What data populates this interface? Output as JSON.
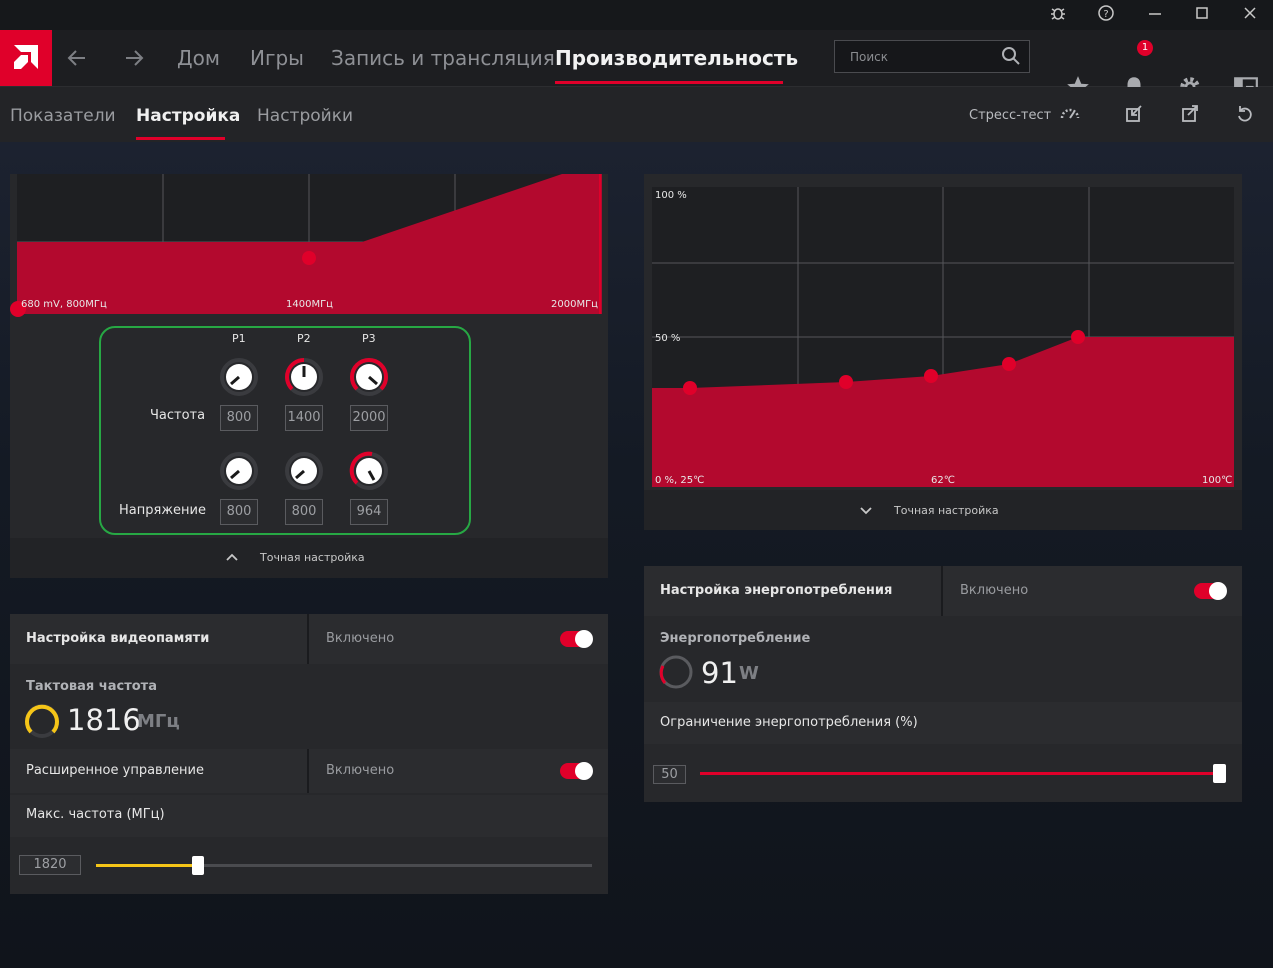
{
  "titlebar": {
    "icons": [
      "bug-icon",
      "help-icon",
      "minimize-icon",
      "maximize-icon",
      "close-icon"
    ]
  },
  "nav": {
    "items": [
      {
        "label": "Дом"
      },
      {
        "label": "Игры"
      },
      {
        "label": "Запись и трансляция"
      },
      {
        "label": "Производительность"
      }
    ],
    "active": "Производительность",
    "search_placeholder": "Поиск",
    "notification_count": "1",
    "accent": "#e0002a"
  },
  "subnav": {
    "items": [
      {
        "label": "Показатели"
      },
      {
        "label": "Настройка"
      },
      {
        "label": "Настройки"
      }
    ],
    "active": "Настройка",
    "stress_test_label": "Стресс-тест"
  },
  "gpu_tuning": {
    "curve_labels": {
      "left": "680 mV, 800МГц",
      "mid": "1400МГц",
      "right": "2000МГц"
    },
    "states": [
      "P1",
      "P2",
      "P3"
    ],
    "frequency_label": "Частота",
    "voltage_label": "Напряжение",
    "frequency_values": [
      "800",
      "1400",
      "2000"
    ],
    "voltage_values": [
      "800",
      "800",
      "964"
    ],
    "fine_tune_label": "Точная настройка"
  },
  "vram": {
    "title": "Настройка видеопамяти",
    "state": "Включено",
    "enabled": true,
    "clock_label": "Тактовая частота",
    "clock_value": "1816",
    "clock_unit": "МГц",
    "advanced_label": "Расширенное управление",
    "advanced_state": "Включено",
    "max_freq_label": "Макс. частота (МГц)",
    "max_freq_value": "1820",
    "slider_color": "#f5c518"
  },
  "fan": {
    "labels": {
      "y_top": "100 %",
      "y_mid": "50 %",
      "origin": "0 %, 25℃",
      "x_mid": "62℃",
      "x_right": "100℃"
    },
    "fine_tune_label": "Точная настройка"
  },
  "power": {
    "title": "Настройка энергопотребления",
    "state": "Включено",
    "enabled": true,
    "consumption_label": "Энергопотребление",
    "consumption_value": "91",
    "consumption_unit": "W",
    "limit_label": "Ограничение энергопотребления (%)",
    "limit_value": "50"
  }
}
